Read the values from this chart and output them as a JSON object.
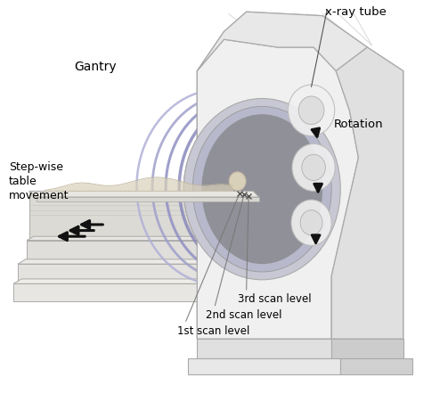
{
  "bg_color": "#ffffff",
  "gantry_face_color": "#f0f0f0",
  "gantry_edge_color": "#aaaaaa",
  "gantry_top_color": "#e8e8e8",
  "gantry_side_color": "#e0e0e0",
  "ring_blue": "#8888bb",
  "ring_blue2": "#aaaacc",
  "ring_blue3": "#c0c0dd",
  "bore_gray": "#b0b0c0",
  "bore_dark": "#888898",
  "bore_fill": "#a0a0b5",
  "table_top_color": "#e8e8e8",
  "table_side_color": "#d0d0d0",
  "table_base_color": "#e0e0e0",
  "arrow_color": "#111111",
  "scan_line_color": "#666666",
  "patient_color": "#ddd8c8",
  "labels": {
    "xray_tube": "x-ray tube",
    "gantry": "Gantry",
    "rotation": "Rotation",
    "stepwise": "Step-wise\ntable\nmovement",
    "scan3": "3rd scan level",
    "scan2": "2nd scan level",
    "scan1": "1st scan level"
  },
  "fig_width": 5.03,
  "fig_height": 4.42,
  "dpi": 100
}
